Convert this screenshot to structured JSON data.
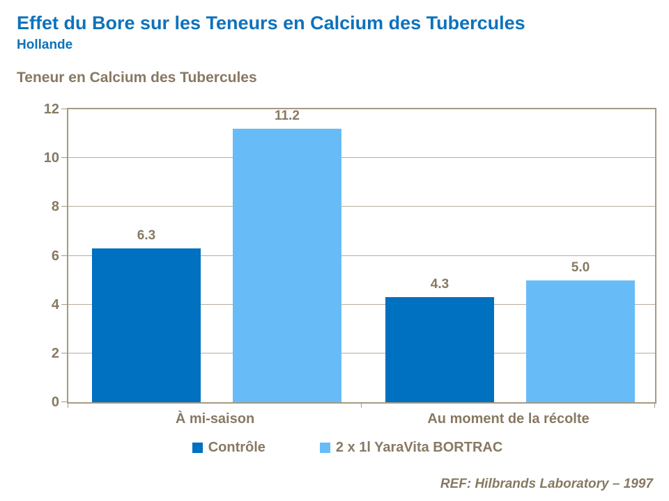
{
  "header": {
    "title": "Effet du Bore sur les Teneurs en Calcium des Tubercules",
    "subtitle": "Hollande"
  },
  "chart_data": {
    "type": "bar",
    "title": "Teneur en Calcium des Tubercules",
    "categories": [
      "À mi-saison",
      "Au moment de la récolte"
    ],
    "series": [
      {
        "name": "Contrôle",
        "color": "#0070C0",
        "values": [
          6.3,
          4.3
        ]
      },
      {
        "name": "2 x 1l YaraVita BORTRAC",
        "color": "#67BCF8",
        "values": [
          11.2,
          5.0
        ]
      }
    ],
    "ylim": [
      0,
      12
    ],
    "yticks": [
      0,
      2,
      4,
      6,
      8,
      10,
      12
    ],
    "grid": true,
    "value_labels": true,
    "legend_position": "bottom",
    "reference": "REF: Hilbrands Laboratory – 1997"
  },
  "colors": {
    "title_blue": "#0D72BC",
    "text_brown": "#877962",
    "gridline": "#B8AC9C",
    "plot_border": "#A59884",
    "series_dark_blue": "#0070C0",
    "series_light_blue": "#67BCF8"
  }
}
